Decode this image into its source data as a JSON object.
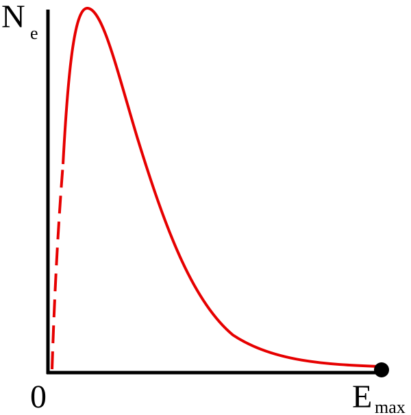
{
  "y_axis_label": {
    "main": "N",
    "sub": "e"
  },
  "origin_label": "0",
  "x_axis_label": {
    "main": "E",
    "sub": "max"
  }
}
